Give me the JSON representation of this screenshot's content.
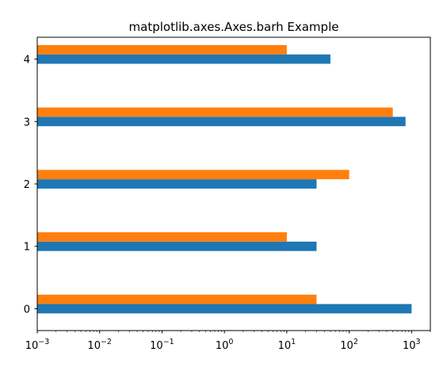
{
  "chart_data": {
    "type": "bar",
    "orientation": "horizontal",
    "title": "matplotlib.axes.Axes.barh Example",
    "xlabel": "",
    "ylabel": "",
    "xscale": "log",
    "xlim": [
      0.001,
      2000
    ],
    "x_ticks": [
      {
        "value": 0.001,
        "base": "10",
        "exp": "−3"
      },
      {
        "value": 0.01,
        "base": "10",
        "exp": "−2"
      },
      {
        "value": 0.1,
        "base": "10",
        "exp": "−1"
      },
      {
        "value": 1,
        "base": "10",
        "exp": "0"
      },
      {
        "value": 10,
        "base": "10",
        "exp": "1"
      },
      {
        "value": 100,
        "base": "10",
        "exp": "2"
      },
      {
        "value": 1000,
        "base": "10",
        "exp": "3"
      }
    ],
    "categories": [
      "0",
      "1",
      "2",
      "3",
      "4"
    ],
    "series": [
      {
        "color": "#1f77b4",
        "values": [
          1000,
          30,
          30,
          800,
          50
        ]
      },
      {
        "color": "#ff7f0e",
        "values": [
          30,
          10,
          100,
          500,
          10
        ]
      }
    ],
    "grid": false,
    "legend": false
  }
}
